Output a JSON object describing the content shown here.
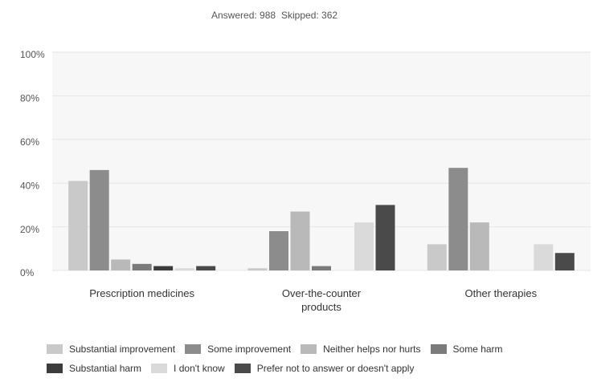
{
  "chart_data": {
    "type": "bar",
    "answered": "Answered: 988",
    "skipped": "Skipped: 362",
    "categories": [
      "Prescription medicines",
      "Over-the-counter products",
      "Other therapies"
    ],
    "series": [
      {
        "name": "Substantial improvement",
        "color": "#c9c9c9",
        "values": [
          41,
          1,
          12
        ]
      },
      {
        "name": "Some improvement",
        "color": "#8c8c8c",
        "values": [
          46,
          18,
          47
        ]
      },
      {
        "name": "Neither helps nor hurts",
        "color": "#b9b9b9",
        "values": [
          5,
          27,
          22
        ]
      },
      {
        "name": "Some harm",
        "color": "#7b7b7b",
        "values": [
          3,
          2,
          0
        ]
      },
      {
        "name": "Substantial harm",
        "color": "#3c3c3c",
        "values": [
          2,
          0,
          0
        ]
      },
      {
        "name": "I don't know",
        "color": "#dadada",
        "values": [
          1,
          22,
          12
        ]
      },
      {
        "name": "Prefer not to answer or doesn't apply",
        "color": "#4a4a4a",
        "values": [
          2,
          30,
          8
        ]
      }
    ],
    "ylim": [
      0,
      100
    ],
    "yticks": [
      {
        "value": 0,
        "label": "0%"
      },
      {
        "value": 20,
        "label": "20%"
      },
      {
        "value": 40,
        "label": "40%"
      },
      {
        "value": 60,
        "label": "60%"
      },
      {
        "value": 80,
        "label": "80%"
      },
      {
        "value": 100,
        "label": "100%"
      }
    ],
    "grid": true
  }
}
